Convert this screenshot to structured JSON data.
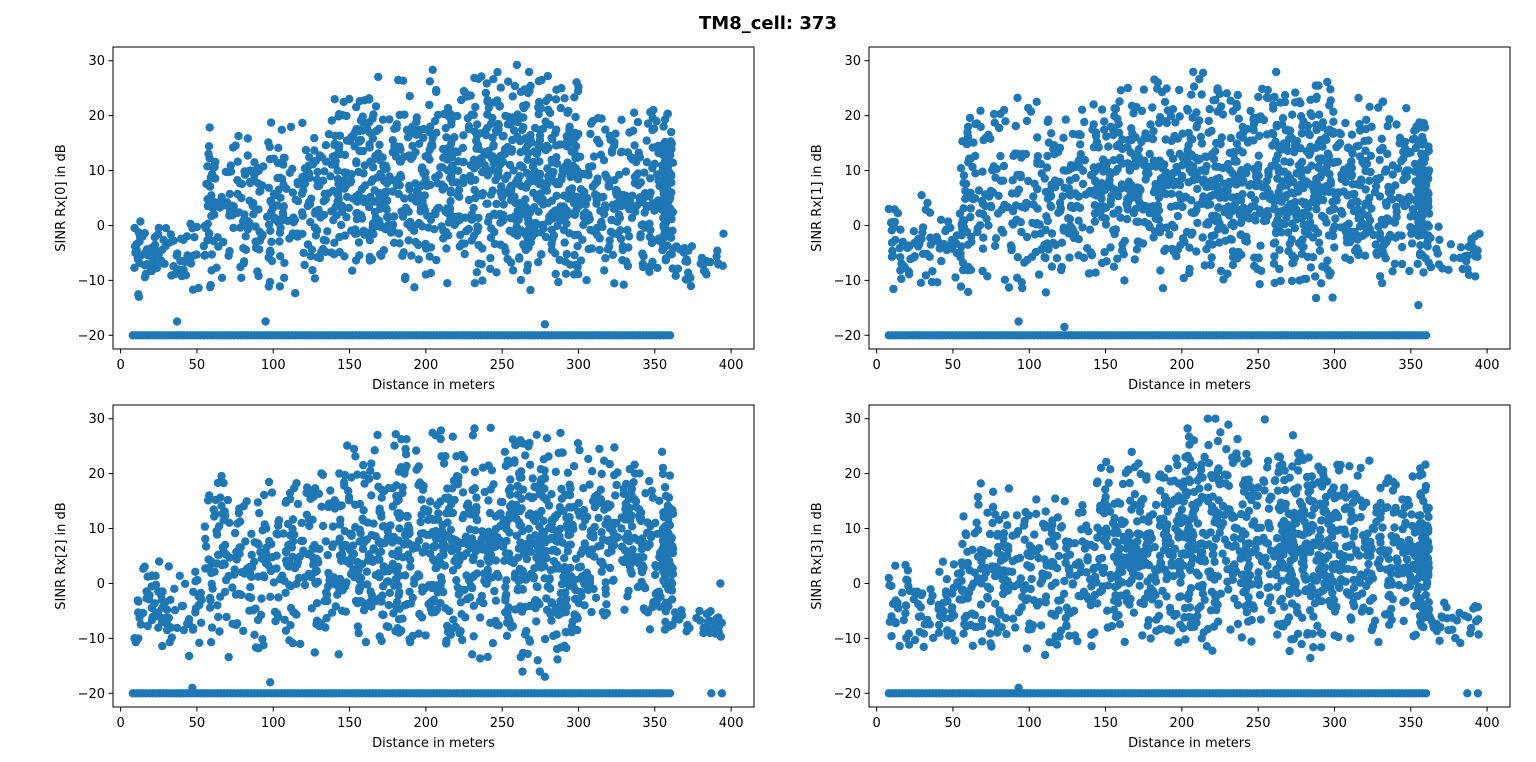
{
  "figure": {
    "title": "TM8_cell: 373"
  },
  "chart_data": [
    {
      "type": "scatter",
      "title": "",
      "xlabel": "Distance in meters",
      "ylabel": "SINR Rx[0] in dB",
      "xlim": [
        -5,
        415
      ],
      "ylim": [
        -22.5,
        32.5
      ],
      "xticks": [
        0,
        50,
        100,
        150,
        200,
        250,
        300,
        350,
        400
      ],
      "yticks": [
        -20,
        -10,
        0,
        10,
        20,
        30
      ],
      "grid": false,
      "marker_color": "#1f77b4",
      "seed": 11,
      "bands": [
        {
          "x0": 8,
          "x1": 60,
          "ymin": -13,
          "ymax": 2,
          "n": 90
        },
        {
          "x0": 55,
          "x1": 140,
          "ymin": -14,
          "ymax": 20,
          "n": 260
        },
        {
          "x0": 140,
          "x1": 200,
          "ymin": -12,
          "ymax": 28,
          "n": 280
        },
        {
          "x0": 200,
          "x1": 260,
          "ymin": -12,
          "ymax": 30,
          "n": 300
        },
        {
          "x0": 260,
          "x1": 300,
          "ymin": -13,
          "ymax": 30,
          "n": 260
        },
        {
          "x0": 300,
          "x1": 360,
          "ymin": -11,
          "ymax": 23,
          "n": 240
        },
        {
          "x0": 355,
          "x1": 362,
          "ymin": -10,
          "ymax": 22,
          "n": 80
        },
        {
          "x0": 362,
          "x1": 395,
          "ymin": -12,
          "ymax": -2,
          "n": 30
        }
      ],
      "floor": {
        "y": -20,
        "x0": 8,
        "x1": 360,
        "n": 160
      },
      "extra_points": [
        [
          37,
          -17.5
        ],
        [
          95,
          -17.5
        ],
        [
          278,
          -18
        ],
        [
          12,
          -13
        ],
        [
          395,
          -1.5
        ]
      ]
    },
    {
      "type": "scatter",
      "title": "",
      "xlabel": "Distance in meters",
      "ylabel": "SINR Rx[1] in dB",
      "xlim": [
        -5,
        415
      ],
      "ylim": [
        -22.5,
        32.5
      ],
      "xticks": [
        0,
        50,
        100,
        150,
        200,
        250,
        300,
        350,
        400
      ],
      "yticks": [
        -20,
        -10,
        0,
        10,
        20,
        30
      ],
      "grid": false,
      "marker_color": "#1f77b4",
      "seed": 23,
      "bands": [
        {
          "x0": 8,
          "x1": 60,
          "ymin": -13,
          "ymax": 7,
          "n": 90
        },
        {
          "x0": 55,
          "x1": 140,
          "ymin": -14,
          "ymax": 25,
          "n": 260
        },
        {
          "x0": 140,
          "x1": 200,
          "ymin": -12,
          "ymax": 28,
          "n": 280
        },
        {
          "x0": 200,
          "x1": 260,
          "ymin": -13,
          "ymax": 30,
          "n": 300
        },
        {
          "x0": 260,
          "x1": 300,
          "ymin": -14,
          "ymax": 28,
          "n": 260
        },
        {
          "x0": 300,
          "x1": 360,
          "ymin": -12,
          "ymax": 25,
          "n": 240
        },
        {
          "x0": 355,
          "x1": 362,
          "ymin": -10,
          "ymax": 20,
          "n": 80
        },
        {
          "x0": 362,
          "x1": 395,
          "ymin": -11,
          "ymax": 0,
          "n": 30
        }
      ],
      "floor": {
        "y": -20,
        "x0": 8,
        "x1": 360,
        "n": 160
      },
      "extra_points": [
        [
          93,
          -17.5
        ],
        [
          123,
          -18.5
        ],
        [
          8,
          3
        ],
        [
          355,
          -14.5
        ],
        [
          395,
          -1.5
        ]
      ]
    },
    {
      "type": "scatter",
      "title": "",
      "xlabel": "Distance in meters",
      "ylabel": "SINR Rx[2] in dB",
      "xlim": [
        -5,
        415
      ],
      "ylim": [
        -22.5,
        32.5
      ],
      "xticks": [
        0,
        50,
        100,
        150,
        200,
        250,
        300,
        350,
        400
      ],
      "yticks": [
        -20,
        -10,
        0,
        10,
        20,
        30
      ],
      "grid": false,
      "marker_color": "#1f77b4",
      "seed": 37,
      "bands": [
        {
          "x0": 8,
          "x1": 60,
          "ymin": -14,
          "ymax": 6,
          "n": 90
        },
        {
          "x0": 55,
          "x1": 140,
          "ymin": -14,
          "ymax": 22,
          "n": 260
        },
        {
          "x0": 140,
          "x1": 200,
          "ymin": -15,
          "ymax": 30,
          "n": 280
        },
        {
          "x0": 200,
          "x1": 260,
          "ymin": -15,
          "ymax": 30,
          "n": 300
        },
        {
          "x0": 260,
          "x1": 300,
          "ymin": -17,
          "ymax": 30,
          "n": 260
        },
        {
          "x0": 300,
          "x1": 360,
          "ymin": -10,
          "ymax": 26,
          "n": 240
        },
        {
          "x0": 355,
          "x1": 362,
          "ymin": -10,
          "ymax": 20,
          "n": 80
        },
        {
          "x0": 362,
          "x1": 395,
          "ymin": -11,
          "ymax": -3,
          "n": 30
        }
      ],
      "floor": {
        "y": -20,
        "x0": 8,
        "x1": 360,
        "n": 160
      },
      "extra_points": [
        [
          98,
          -18
        ],
        [
          47,
          -19
        ],
        [
          278,
          -17
        ],
        [
          387,
          -20
        ],
        [
          394,
          -20
        ],
        [
          393,
          0
        ]
      ]
    },
    {
      "type": "scatter",
      "title": "",
      "xlabel": "Distance in meters",
      "ylabel": "SINR Rx[3] in dB",
      "xlim": [
        -5,
        415
      ],
      "ylim": [
        -22.5,
        32.5
      ],
      "xticks": [
        0,
        50,
        100,
        150,
        200,
        250,
        300,
        350,
        400
      ],
      "yticks": [
        -20,
        -10,
        0,
        10,
        20,
        30
      ],
      "grid": false,
      "marker_color": "#1f77b4",
      "seed": 53,
      "bands": [
        {
          "x0": 8,
          "x1": 60,
          "ymin": -13,
          "ymax": 6,
          "n": 90
        },
        {
          "x0": 55,
          "x1": 140,
          "ymin": -15,
          "ymax": 20,
          "n": 260
        },
        {
          "x0": 140,
          "x1": 200,
          "ymin": -14,
          "ymax": 26,
          "n": 280
        },
        {
          "x0": 200,
          "x1": 260,
          "ymin": -13,
          "ymax": 30,
          "n": 300
        },
        {
          "x0": 260,
          "x1": 300,
          "ymin": -14,
          "ymax": 29,
          "n": 260
        },
        {
          "x0": 300,
          "x1": 360,
          "ymin": -12,
          "ymax": 25,
          "n": 240
        },
        {
          "x0": 355,
          "x1": 362,
          "ymin": -10,
          "ymax": 21,
          "n": 80
        },
        {
          "x0": 362,
          "x1": 395,
          "ymin": -11,
          "ymax": -3,
          "n": 30
        }
      ],
      "floor": {
        "y": -20,
        "x0": 8,
        "x1": 360,
        "n": 160
      },
      "extra_points": [
        [
          93,
          -19
        ],
        [
          8,
          1
        ],
        [
          387,
          -20
        ],
        [
          394,
          -20
        ],
        [
          222,
          30
        ],
        [
          217,
          30
        ]
      ]
    }
  ]
}
